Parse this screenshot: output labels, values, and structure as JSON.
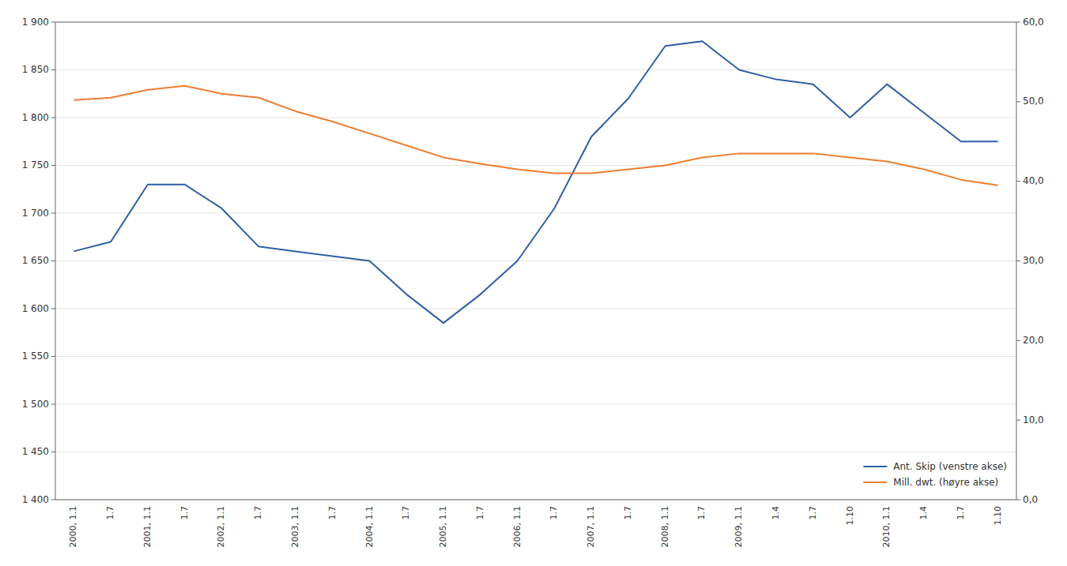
{
  "chart_data": {
    "type": "line",
    "categories": [
      "2000, 1.1",
      "1.7",
      "2001, 1.1",
      "1.7",
      "2002, 1.1",
      "1.7",
      "2003, 1.1",
      "1.7",
      "2004, 1.1",
      "1.7",
      "2005, 1.1",
      "1.7",
      "2006, 1.1",
      "1.7",
      "2007, 1.1",
      "1.7",
      "2008, 1.1",
      "1.7",
      "2009, 1.1",
      "1.4",
      "1.7",
      "1.10",
      "2010, 1.1",
      "1.4",
      "1.7",
      "1.10"
    ],
    "series": [
      {
        "name": "Ant. Skip (venstre akse)",
        "color": "#2E5FA3",
        "axis": "y",
        "values": [
          1660,
          1670,
          1730,
          1730,
          1705,
          1665,
          1660,
          1655,
          1650,
          1615,
          1585,
          1615,
          1650,
          1705,
          1780,
          1820,
          1875,
          1880,
          1850,
          1840,
          1835,
          1800,
          1835,
          1805,
          1775,
          1775
        ]
      },
      {
        "name": "Mill. dwt. (høyre akse)",
        "color": "#ED7D31",
        "axis": "y2",
        "values": [
          50.2,
          50.5,
          51.5,
          52.0,
          51.0,
          50.5,
          48.8,
          47.5,
          46.0,
          44.5,
          43.0,
          42.2,
          41.5,
          41.0,
          41.0,
          41.5,
          42.0,
          43.0,
          43.5,
          43.5,
          43.5,
          43.0,
          42.5,
          41.5,
          40.2,
          39.5
        ]
      }
    ],
    "ylim": [
      1400,
      1900
    ],
    "yticks": [
      {
        "value": 1400,
        "label": "1 400"
      },
      {
        "value": 1450,
        "label": "1 450"
      },
      {
        "value": 1500,
        "label": "1 500"
      },
      {
        "value": 1550,
        "label": "1 550"
      },
      {
        "value": 1600,
        "label": "1 600"
      },
      {
        "value": 1650,
        "label": "1 650"
      },
      {
        "value": 1700,
        "label": "1 700"
      },
      {
        "value": 1750,
        "label": "1 750"
      },
      {
        "value": 1800,
        "label": "1 800"
      },
      {
        "value": 1850,
        "label": "1 850"
      },
      {
        "value": 1900,
        "label": "1 900"
      }
    ],
    "y2lim": [
      0,
      60
    ],
    "y2ticks": [
      {
        "value": 0,
        "label": "0,0"
      },
      {
        "value": 10,
        "label": "10,0"
      },
      {
        "value": 20,
        "label": "20,0"
      },
      {
        "value": 30,
        "label": "30,0"
      },
      {
        "value": 40,
        "label": "40,0"
      },
      {
        "value": 50,
        "label": "50,0"
      },
      {
        "value": 60,
        "label": "60,0"
      }
    ],
    "grid": true,
    "legend": "lower right"
  }
}
